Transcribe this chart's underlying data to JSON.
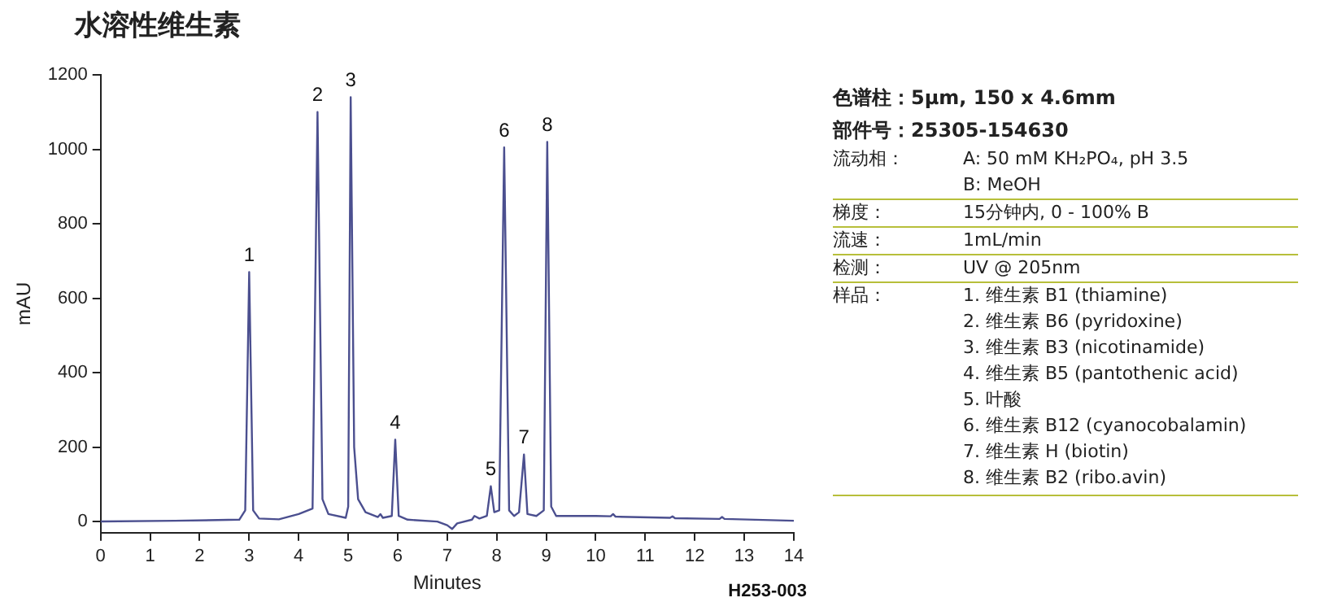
{
  "chart_data": {
    "type": "line",
    "title": "水溶性维生素",
    "xlabel": "Minutes",
    "ylabel": "mAU",
    "xlim": [
      0,
      14
    ],
    "xticks": [
      0,
      1,
      2,
      3,
      4,
      5,
      6,
      7,
      8,
      9,
      10,
      11,
      12,
      13,
      14
    ],
    "ylim": [
      -30,
      1200
    ],
    "yticks": [
      0,
      200,
      400,
      600,
      800,
      1000,
      1200
    ],
    "grid": false,
    "legend": false,
    "marker": "none",
    "line_style": "solid",
    "x": [
      0,
      1.5,
      2.8,
      2.92,
      3.0,
      3.08,
      3.2,
      3.6,
      4.0,
      4.28,
      4.38,
      4.48,
      4.6,
      4.95,
      5.0,
      5.05,
      5.12,
      5.2,
      5.35,
      5.6,
      5.65,
      5.7,
      5.88,
      5.95,
      6.02,
      6.2,
      6.8,
      7.0,
      7.1,
      7.2,
      7.5,
      7.55,
      7.65,
      7.8,
      7.88,
      7.95,
      8.05,
      8.15,
      8.25,
      8.35,
      8.45,
      8.55,
      8.62,
      8.8,
      8.95,
      9.02,
      9.1,
      9.2,
      10.0,
      10.3,
      10.35,
      10.4,
      11.5,
      11.55,
      11.6,
      12.5,
      12.55,
      12.6,
      14
    ],
    "series": [
      {
        "color": "#4b4f8f",
        "values": [
          0,
          2,
          5,
          30,
          670,
          30,
          8,
          6,
          20,
          35,
          1100,
          60,
          20,
          10,
          40,
          1140,
          200,
          60,
          25,
          12,
          20,
          10,
          15,
          220,
          15,
          5,
          0,
          -10,
          -20,
          -5,
          5,
          15,
          8,
          15,
          95,
          25,
          30,
          1005,
          30,
          15,
          25,
          180,
          20,
          15,
          30,
          1020,
          40,
          15,
          15,
          14,
          20,
          13,
          10,
          14,
          9,
          7,
          12,
          7,
          2
        ]
      }
    ],
    "annotations": [
      {
        "text": "1",
        "x": 3.0,
        "y": 670
      },
      {
        "text": "2",
        "x": 4.38,
        "y": 1100
      },
      {
        "text": "3",
        "x": 5.05,
        "y": 1140
      },
      {
        "text": "4",
        "x": 5.95,
        "y": 220
      },
      {
        "text": "5",
        "x": 7.88,
        "y": 95
      },
      {
        "text": "6",
        "x": 8.15,
        "y": 1005
      },
      {
        "text": "7",
        "x": 8.55,
        "y": 180
      },
      {
        "text": "8",
        "x": 9.02,
        "y": 1020
      },
      "色谱柱：5µm, 150 x 4.6mm",
      "部件号：25305-154630",
      "流动相：",
      "A: 50 mM KH₂PO₄, pH 3.5",
      "B: MeOH",
      "梯度：",
      "15分钟内, 0 - 100% B",
      "流速：",
      "1mL/min",
      "检测：",
      "UV @ 205nm",
      "样品：",
      "1. 维生素 B1 (thiamine)",
      "2. 维生素 B6 (pyridoxine)",
      "3. 维生素 B3 (nicotinamide)",
      "4. 维生素 B5 (pantothenic acid)",
      "5. 叶酸",
      "6. 维生素 B12 (cyanocobalamin)",
      "7. 维生素 H (biotin)",
      "8. 维生素 B2 (ribo.avin)",
      "H253-003"
    ]
  }
}
